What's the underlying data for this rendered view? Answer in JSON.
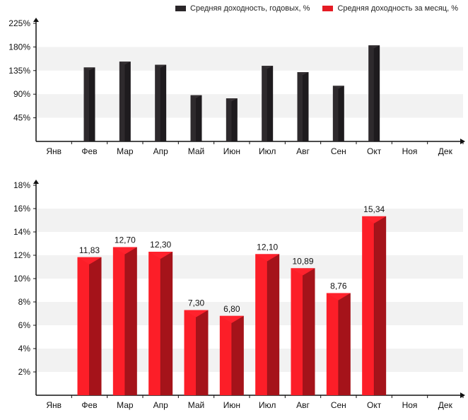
{
  "legend": {
    "annual_label": "Средняя доходность, годовых, %",
    "monthly_label": "Средняя доходность за месяц, %"
  },
  "chart_data": [
    {
      "type": "bar",
      "title": "",
      "categories": [
        "Янв",
        "Фев",
        "Мар",
        "Апр",
        "Май",
        "Июн",
        "Июл",
        "Авг",
        "Сен",
        "Окт",
        "Ноя",
        "Дек"
      ],
      "series": [
        {
          "name": "Средняя доходность, годовых, %",
          "color": "#2a2629",
          "values": [
            null,
            141,
            152,
            146,
            88,
            82,
            144,
            132,
            106,
            183,
            null,
            null
          ]
        }
      ],
      "yticks": [
        45,
        90,
        135,
        180,
        225
      ],
      "ytick_labels": [
        "45%",
        "90%",
        "135%",
        "180%",
        "225%"
      ],
      "ylim": [
        0,
        225
      ],
      "xlabel": "",
      "ylabel": "",
      "value_labels": null
    },
    {
      "type": "bar",
      "title": "",
      "categories": [
        "Янв",
        "Фев",
        "Мар",
        "Апр",
        "Май",
        "Июн",
        "Июл",
        "Авг",
        "Сен",
        "Окт",
        "Ноя",
        "Дек"
      ],
      "series": [
        {
          "name": "Средняя доходность за месяц, %",
          "color": "#e51b24",
          "values": [
            null,
            11.83,
            12.7,
            12.3,
            7.3,
            6.8,
            12.1,
            10.89,
            8.76,
            15.34,
            null,
            null
          ]
        }
      ],
      "yticks": [
        2,
        4,
        6,
        8,
        10,
        12,
        14,
        16,
        18
      ],
      "ytick_labels": [
        "2%",
        "4%",
        "6%",
        "8%",
        "10%",
        "12%",
        "14%",
        "16%",
        "18%"
      ],
      "ylim": [
        0,
        18
      ],
      "xlabel": "",
      "ylabel": "",
      "value_labels": [
        null,
        "11,83",
        "12,70",
        "12,30",
        "7,30",
        "6,80",
        "12,10",
        "10,89",
        "8,76",
        "15,34",
        null,
        null
      ]
    }
  ]
}
